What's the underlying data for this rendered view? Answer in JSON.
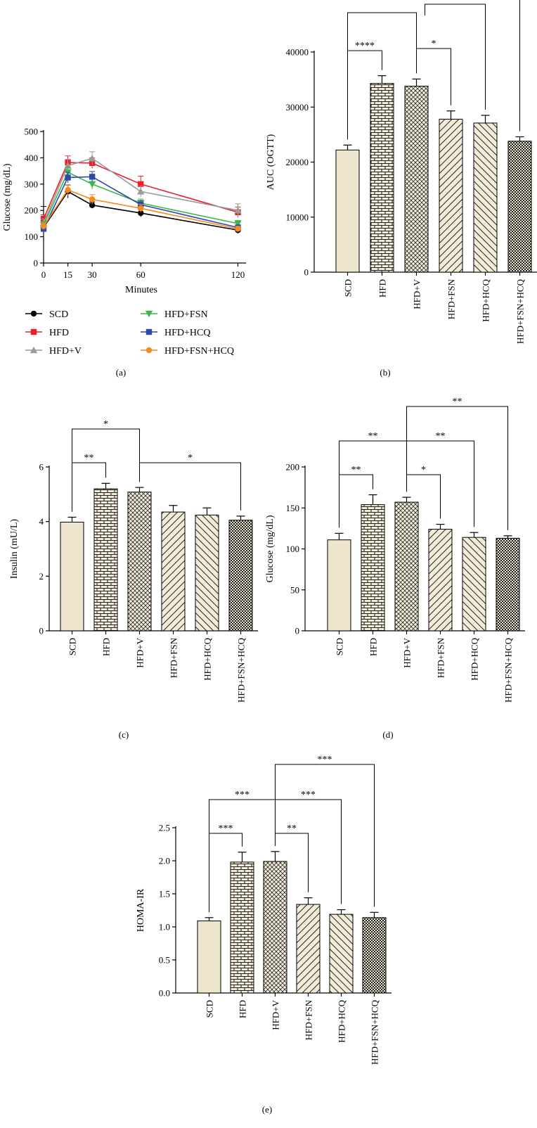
{
  "colors": {
    "SCD": "#000000",
    "HFD": "#e8202a",
    "HFD+V": "#9a9a9a",
    "HFD+FSN": "#3cb54a",
    "HFD+HCQ": "#2e4aa8",
    "HFD+FSN+HCQ": "#f58a1f",
    "bar_scd_fill": "#ede5cc"
  },
  "chart_data": [
    {
      "panel": "a",
      "type": "line",
      "caption": "(a)",
      "xlabel": "Minutes",
      "ylabel": "Glucose (mg/dL)",
      "x": [
        0,
        15,
        30,
        60,
        120
      ],
      "xticks": [
        "0",
        "15",
        "30",
        "60",
        "120"
      ],
      "ylim": [
        0,
        500
      ],
      "yticks": [
        "0",
        "100",
        "200",
        "300",
        "400",
        "500"
      ],
      "legend_position": "below",
      "series": [
        {
          "name": "SCD",
          "marker": "circle",
          "values": [
            135,
            272,
            220,
            190,
            125
          ],
          "errors": [
            80,
            25,
            12,
            15,
            12
          ]
        },
        {
          "name": "HFD",
          "marker": "square",
          "values": [
            168,
            382,
            380,
            300,
            193
          ],
          "errors": [
            15,
            25,
            20,
            30,
            20
          ]
        },
        {
          "name": "HFD+V",
          "marker": "triangle-up",
          "values": [
            152,
            370,
            398,
            272,
            200
          ],
          "errors": [
            15,
            25,
            25,
            20,
            25
          ]
        },
        {
          "name": "HFD+FSN",
          "marker": "triangle-down",
          "values": [
            145,
            345,
            300,
            228,
            150
          ],
          "errors": [
            12,
            20,
            20,
            15,
            12
          ]
        },
        {
          "name": "HFD+HCQ",
          "marker": "square",
          "values": [
            130,
            325,
            328,
            222,
            135
          ],
          "errors": [
            12,
            20,
            20,
            15,
            10
          ]
        },
        {
          "name": "HFD+FSN+HCQ",
          "marker": "circle",
          "values": [
            140,
            278,
            242,
            208,
            130
          ],
          "errors": [
            12,
            20,
            18,
            15,
            10
          ]
        }
      ]
    },
    {
      "panel": "b",
      "type": "bar",
      "caption": "(b)",
      "ylabel": "AUC (OGTT)",
      "categories": [
        "SCD",
        "HFD",
        "HFD+V",
        "HFD+FSN",
        "HFD+HCQ",
        "HFD+FSN+HCQ"
      ],
      "values": [
        22200,
        34300,
        33800,
        27800,
        27100,
        23800
      ],
      "errors": [
        900,
        1400,
        1300,
        1500,
        1400,
        800
      ],
      "ylim": [
        0,
        40000
      ],
      "yticks": [
        "0",
        "10000",
        "20000",
        "30000",
        "40000"
      ],
      "significance": [
        {
          "from": 0,
          "to": 1,
          "label": "****"
        },
        {
          "from": 2,
          "to": 3,
          "label": "*"
        }
      ]
    },
    {
      "panel": "c",
      "type": "bar",
      "caption": "(c)",
      "ylabel": "Insulin (mU/L)",
      "categories": [
        "SCD",
        "HFD",
        "HFD+V",
        "HFD+FSN",
        "HFD+HCQ",
        "HFD+FSN+HCQ"
      ],
      "values": [
        3.98,
        5.2,
        5.08,
        4.35,
        4.24,
        4.05
      ],
      "errors": [
        0.18,
        0.2,
        0.17,
        0.24,
        0.26,
        0.15
      ],
      "ylim": [
        0,
        6
      ],
      "yticks": [
        "0",
        "2",
        "4",
        "6"
      ],
      "significance": [
        {
          "from": 0,
          "to": 1,
          "label": "**"
        },
        {
          "from": 0,
          "to": 2,
          "label": "*"
        },
        {
          "from": 2,
          "to": 5,
          "label": "*"
        }
      ]
    },
    {
      "panel": "d",
      "type": "bar",
      "caption": "(d)",
      "ylabel": "Glucose (mg/dL)",
      "categories": [
        "SCD",
        "HFD",
        "HFD+V",
        "HFD+FSN",
        "HFD+HCQ",
        "HFD+FSN+HCQ"
      ],
      "values": [
        111,
        154,
        157,
        124,
        114,
        113
      ],
      "errors": [
        8,
        12,
        6,
        6,
        6,
        3
      ],
      "ylim": [
        0,
        200
      ],
      "yticks": [
        "0",
        "50",
        "100",
        "150",
        "200"
      ],
      "significance": [
        {
          "from": 0,
          "to": 1,
          "label": "**"
        },
        {
          "from": 2,
          "to": 3,
          "label": "*"
        },
        {
          "from": 0,
          "to": 2,
          "label": "**"
        },
        {
          "from": 2,
          "to": 4,
          "label": "**"
        },
        {
          "from": 2,
          "to": 5,
          "label": "**"
        }
      ]
    },
    {
      "panel": "e",
      "type": "bar",
      "caption": "(e)",
      "ylabel": "HOMA-IR",
      "categories": [
        "SCD",
        "HFD",
        "HFD+V",
        "HFD+FSN",
        "HFD+HCQ",
        "HFD+FSN+HCQ"
      ],
      "values": [
        1.09,
        1.98,
        1.99,
        1.34,
        1.19,
        1.14
      ],
      "errors": [
        0.05,
        0.15,
        0.15,
        0.1,
        0.07,
        0.08
      ],
      "ylim": [
        0,
        2.5
      ],
      "yticks": [
        "0.0",
        "0.5",
        "1.0",
        "1.5",
        "2.0",
        "2.5"
      ],
      "significance": [
        {
          "from": 0,
          "to": 1,
          "label": "***"
        },
        {
          "from": 2,
          "to": 3,
          "label": "**"
        },
        {
          "from": 0,
          "to": 2,
          "label": "***"
        },
        {
          "from": 2,
          "to": 4,
          "label": "***"
        },
        {
          "from": 2,
          "to": 5,
          "label": "***"
        }
      ]
    }
  ]
}
